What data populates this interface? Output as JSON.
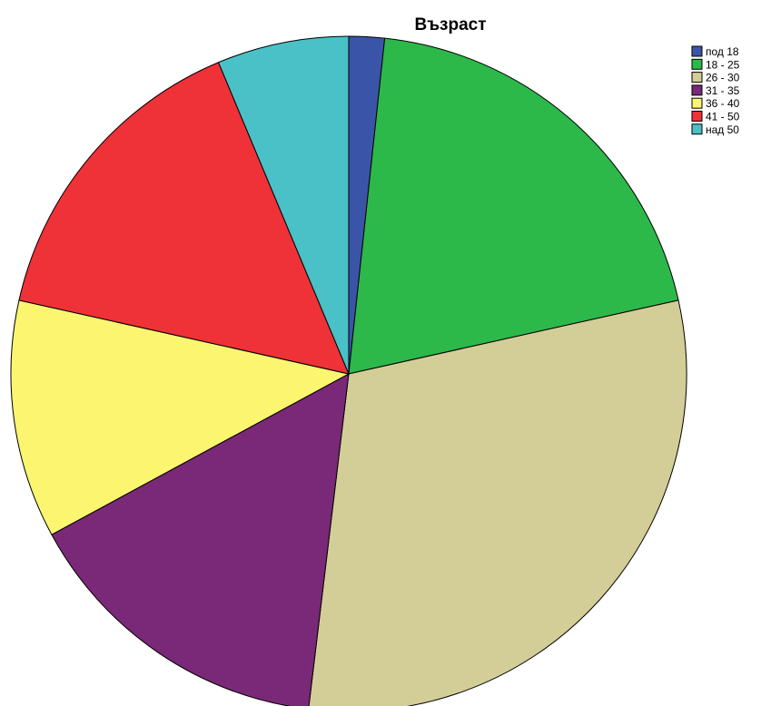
{
  "chart_data": {
    "type": "pie",
    "title": "Възраст",
    "start": "12 o'clock",
    "direction": "clockwise",
    "legend_position": "top-right",
    "slices": [
      {
        "label": "под 18",
        "value": 1.7,
        "color": "#3a55a8"
      },
      {
        "label": "18 - 25",
        "value": 19.8,
        "color": "#2db84a"
      },
      {
        "label": "26 - 30",
        "value": 30.4,
        "color": "#d3ce97"
      },
      {
        "label": "31 - 35",
        "value": 15.2,
        "color": "#7a2878"
      },
      {
        "label": "36 - 40",
        "value": 11.4,
        "color": "#fbf570"
      },
      {
        "label": "41 - 50",
        "value": 15.2,
        "color": "#ef3138"
      },
      {
        "label": "над 50",
        "value": 6.3,
        "color": "#49c1c6"
      }
    ]
  }
}
